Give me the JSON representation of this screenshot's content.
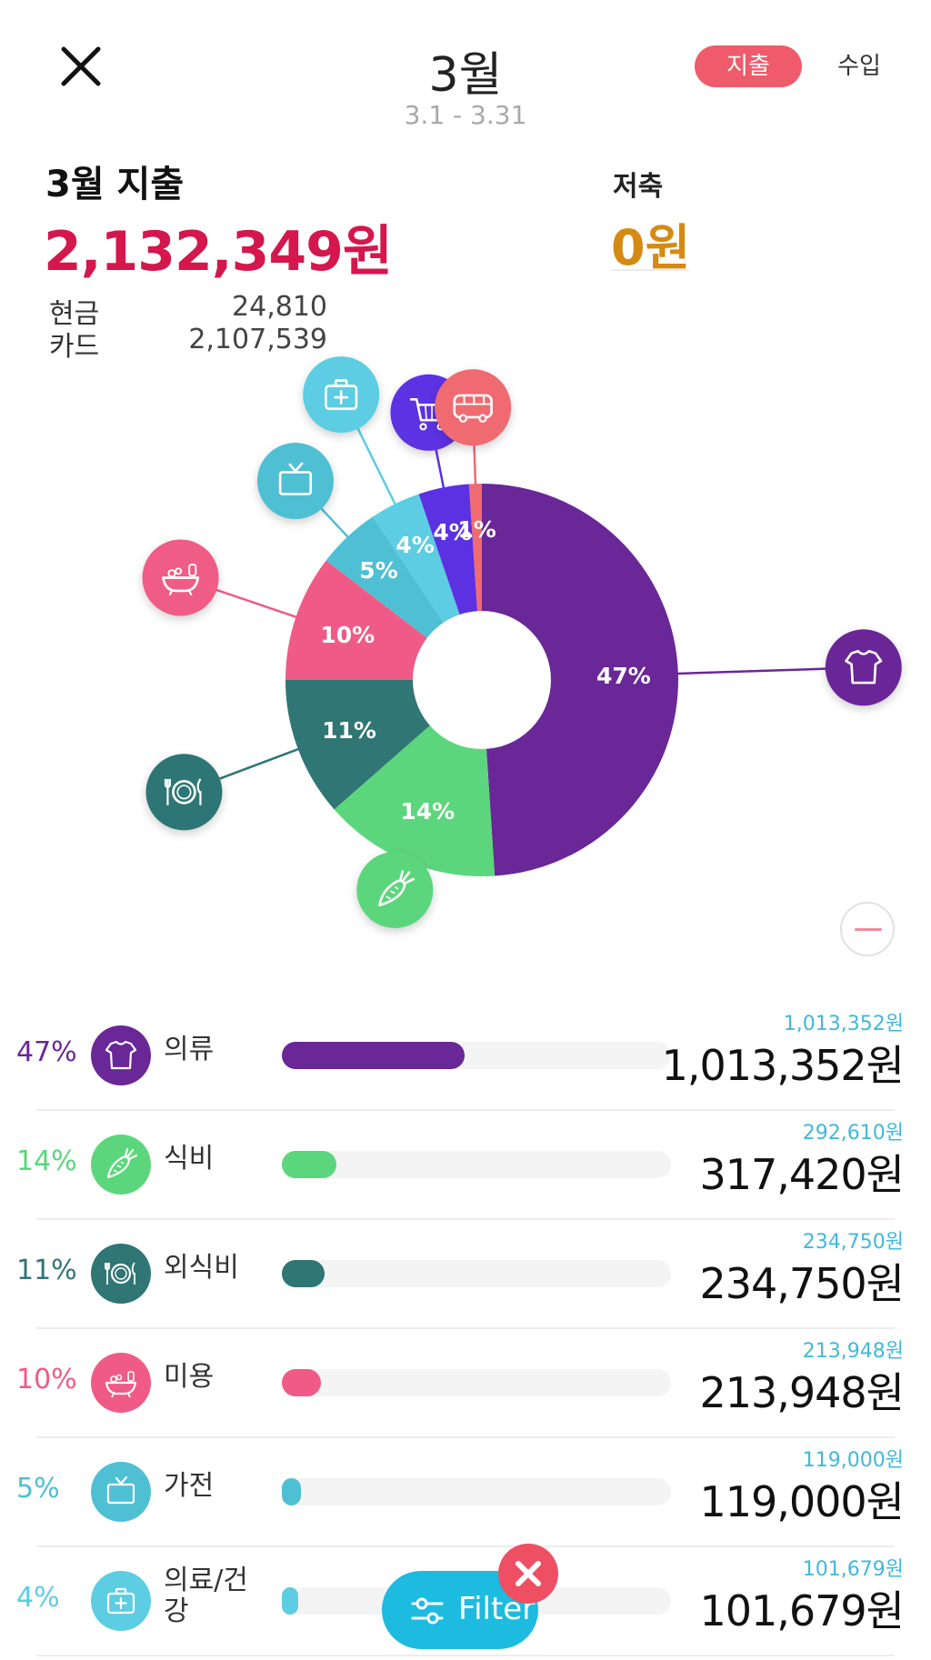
{
  "header": {
    "title": "3월",
    "range": "3.1 - 3.31",
    "tabs": {
      "expense": "지출",
      "income": "수입"
    }
  },
  "summary": {
    "label": "3월 지출",
    "total": "2,132,349원",
    "payments": [
      {
        "label": "현금",
        "value": "24,810"
      },
      {
        "label": "카드",
        "value": "2,107,539"
      }
    ],
    "savings_label": "저축",
    "savings_value": "0원"
  },
  "chart_data": {
    "type": "pie",
    "donut": true,
    "categories": [
      "의류",
      "식비",
      "외식비",
      "미용",
      "가전",
      "의료/건강",
      "쇼핑",
      "교통"
    ],
    "values": [
      47,
      14,
      11,
      10,
      5,
      4,
      4,
      1
    ],
    "labels": [
      "47%",
      "14%",
      "11%",
      "10%",
      "5%",
      "4%",
      "4%",
      "1%"
    ],
    "colors": [
      "#6a2797",
      "#5cd67c",
      "#2f7674",
      "#ef5b86",
      "#4fbfd4",
      "#5ccde2",
      "#5b31e2",
      "#f06a72"
    ],
    "icons": [
      "shirt-icon",
      "carrot-icon",
      "dining-icon",
      "bath-icon",
      "tv-icon",
      "first-aid-icon",
      "cart-icon",
      "bus-icon"
    ]
  },
  "list": [
    {
      "pct": "47%",
      "name": "의류",
      "budget": "1,013,352원",
      "amount": "1,013,352원",
      "fill": 0.47,
      "color": "#6a2797",
      "icon": "shirt-icon"
    },
    {
      "pct": "14%",
      "name": "식비",
      "budget": "292,610원",
      "amount": "317,420원",
      "fill": 0.14,
      "color": "#5cd67c",
      "icon": "carrot-icon"
    },
    {
      "pct": "11%",
      "name": "외식비",
      "budget": "234,750원",
      "amount": "234,750원",
      "fill": 0.11,
      "color": "#2f7674",
      "icon": "dining-icon"
    },
    {
      "pct": "10%",
      "name": "미용",
      "budget": "213,948원",
      "amount": "213,948원",
      "fill": 0.1,
      "color": "#ef5b86",
      "icon": "bath-icon"
    },
    {
      "pct": "5%",
      "name": "가전",
      "budget": "119,000원",
      "amount": "119,000원",
      "fill": 0.05,
      "color": "#4fbfd4",
      "icon": "tv-icon"
    },
    {
      "pct": "4%",
      "name": "의료/건\n강",
      "budget": "101,679원",
      "amount": "101,679원",
      "fill": 0.04,
      "color": "#5ccde2",
      "icon": "first-aid-icon"
    }
  ],
  "filter": {
    "label": "Filter"
  }
}
